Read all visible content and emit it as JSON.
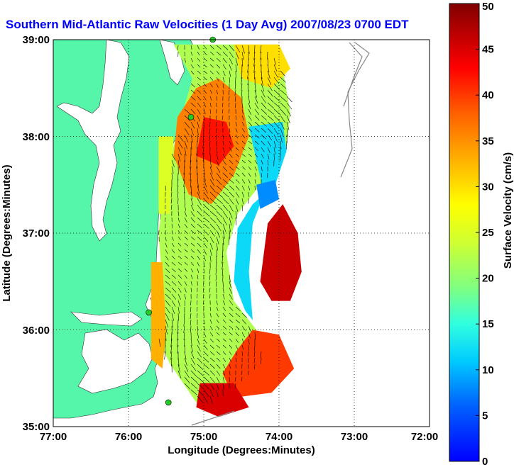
{
  "chart_data": {
    "type": "heatmap",
    "title": "Southern Mid-Atlantic Raw Velocities (1 Day Avg) 2007/08/23 0700 EDT",
    "xlabel": "Longitude (Degrees:Minutes)",
    "ylabel": "Latitude (Degrees:Minutes)",
    "x_ticks": [
      "77:00",
      "76:00",
      "75:00",
      "74:00",
      "73:00",
      "72:00"
    ],
    "y_ticks": [
      "39:00",
      "38:00",
      "37:00",
      "36:00",
      "35:00"
    ],
    "xlim": [
      -77,
      -72
    ],
    "ylim": [
      35,
      39
    ],
    "grid": true,
    "colorbar": {
      "label": "Surface Velocity (cm/s)",
      "min": 0,
      "max": 50,
      "ticks": [
        "0",
        "5",
        "10",
        "15",
        "20",
        "25",
        "30",
        "35",
        "40",
        "45",
        "50"
      ]
    },
    "colors": {
      "land": "#55f5aa",
      "water": "#ffffff",
      "title": "#0000ff",
      "isobath": "#888888",
      "station": "#22cc22"
    },
    "stations": [
      {
        "lon": -74.88,
        "lat": 39.0
      },
      {
        "lon": -75.17,
        "lat": 38.2
      },
      {
        "lon": -75.73,
        "lat": 36.18
      },
      {
        "lon": -75.47,
        "lat": 35.25
      }
    ],
    "regions": [
      {
        "speed": 22,
        "poly": [
          [
            -75.4,
            38.95
          ],
          [
            -74.2,
            38.95
          ],
          [
            -73.95,
            38.7
          ],
          [
            -73.85,
            38.25
          ],
          [
            -73.9,
            37.9
          ],
          [
            -74.2,
            37.55
          ],
          [
            -74.55,
            37.2
          ],
          [
            -74.7,
            36.8
          ],
          [
            -74.6,
            36.3
          ],
          [
            -74.3,
            36.0
          ],
          [
            -74.2,
            35.7
          ],
          [
            -74.6,
            35.4
          ],
          [
            -75.1,
            35.25
          ],
          [
            -75.45,
            35.65
          ],
          [
            -75.6,
            35.9
          ],
          [
            -75.55,
            36.5
          ],
          [
            -75.6,
            37.0
          ],
          [
            -75.5,
            37.6
          ],
          [
            -75.3,
            38.2
          ],
          [
            -75.15,
            38.6
          ]
        ]
      },
      {
        "speed": 36,
        "poly": [
          [
            -75.1,
            38.5
          ],
          [
            -74.8,
            38.6
          ],
          [
            -74.5,
            38.4
          ],
          [
            -74.4,
            38.0
          ],
          [
            -74.6,
            37.6
          ],
          [
            -74.9,
            37.3
          ],
          [
            -75.2,
            37.4
          ],
          [
            -75.4,
            37.8
          ],
          [
            -75.35,
            38.2
          ]
        ]
      },
      {
        "speed": 42,
        "poly": [
          [
            -75.0,
            38.2
          ],
          [
            -74.7,
            38.15
          ],
          [
            -74.6,
            37.9
          ],
          [
            -74.8,
            37.7
          ],
          [
            -75.1,
            37.8
          ]
        ]
      },
      {
        "speed": 30,
        "poly": [
          [
            -74.6,
            38.95
          ],
          [
            -74.0,
            38.95
          ],
          [
            -73.85,
            38.7
          ],
          [
            -74.1,
            38.5
          ],
          [
            -74.5,
            38.6
          ]
        ]
      },
      {
        "speed": 12,
        "poly": [
          [
            -74.4,
            38.1
          ],
          [
            -73.95,
            38.15
          ],
          [
            -73.9,
            37.85
          ],
          [
            -74.05,
            37.5
          ],
          [
            -74.35,
            37.3
          ],
          [
            -74.55,
            37.05
          ],
          [
            -74.6,
            36.5
          ],
          [
            -74.45,
            36.2
          ],
          [
            -74.35,
            36.1
          ],
          [
            -74.4,
            36.6
          ],
          [
            -74.35,
            37.1
          ],
          [
            -74.2,
            37.4
          ]
        ]
      },
      {
        "speed": 8,
        "poly": [
          [
            -74.3,
            37.5
          ],
          [
            -74.05,
            37.55
          ],
          [
            -74.0,
            37.35
          ],
          [
            -74.25,
            37.25
          ]
        ]
      },
      {
        "speed": 46,
        "poly": [
          [
            -74.15,
            37.1
          ],
          [
            -73.95,
            37.3
          ],
          [
            -73.75,
            37.0
          ],
          [
            -73.7,
            36.6
          ],
          [
            -73.85,
            36.3
          ],
          [
            -74.1,
            36.3
          ],
          [
            -74.25,
            36.5
          ]
        ]
      },
      {
        "speed": 40,
        "poly": [
          [
            -74.35,
            36.0
          ],
          [
            -74.0,
            35.95
          ],
          [
            -73.8,
            35.6
          ],
          [
            -74.1,
            35.35
          ],
          [
            -74.6,
            35.3
          ],
          [
            -74.75,
            35.55
          ],
          [
            -74.55,
            35.8
          ]
        ]
      },
      {
        "speed": 45,
        "poly": [
          [
            -75.05,
            35.45
          ],
          [
            -74.6,
            35.45
          ],
          [
            -74.4,
            35.2
          ],
          [
            -74.8,
            35.1
          ],
          [
            -75.1,
            35.2
          ]
        ]
      },
      {
        "speed": 33,
        "poly": [
          [
            -75.7,
            36.7
          ],
          [
            -75.55,
            36.7
          ],
          [
            -75.5,
            36.0
          ],
          [
            -75.55,
            35.6
          ],
          [
            -75.7,
            35.7
          ]
        ]
      },
      {
        "speed": 25,
        "poly": [
          [
            -75.6,
            38.0
          ],
          [
            -75.4,
            38.0
          ],
          [
            -75.45,
            37.2
          ],
          [
            -75.6,
            37.2
          ]
        ]
      }
    ]
  }
}
